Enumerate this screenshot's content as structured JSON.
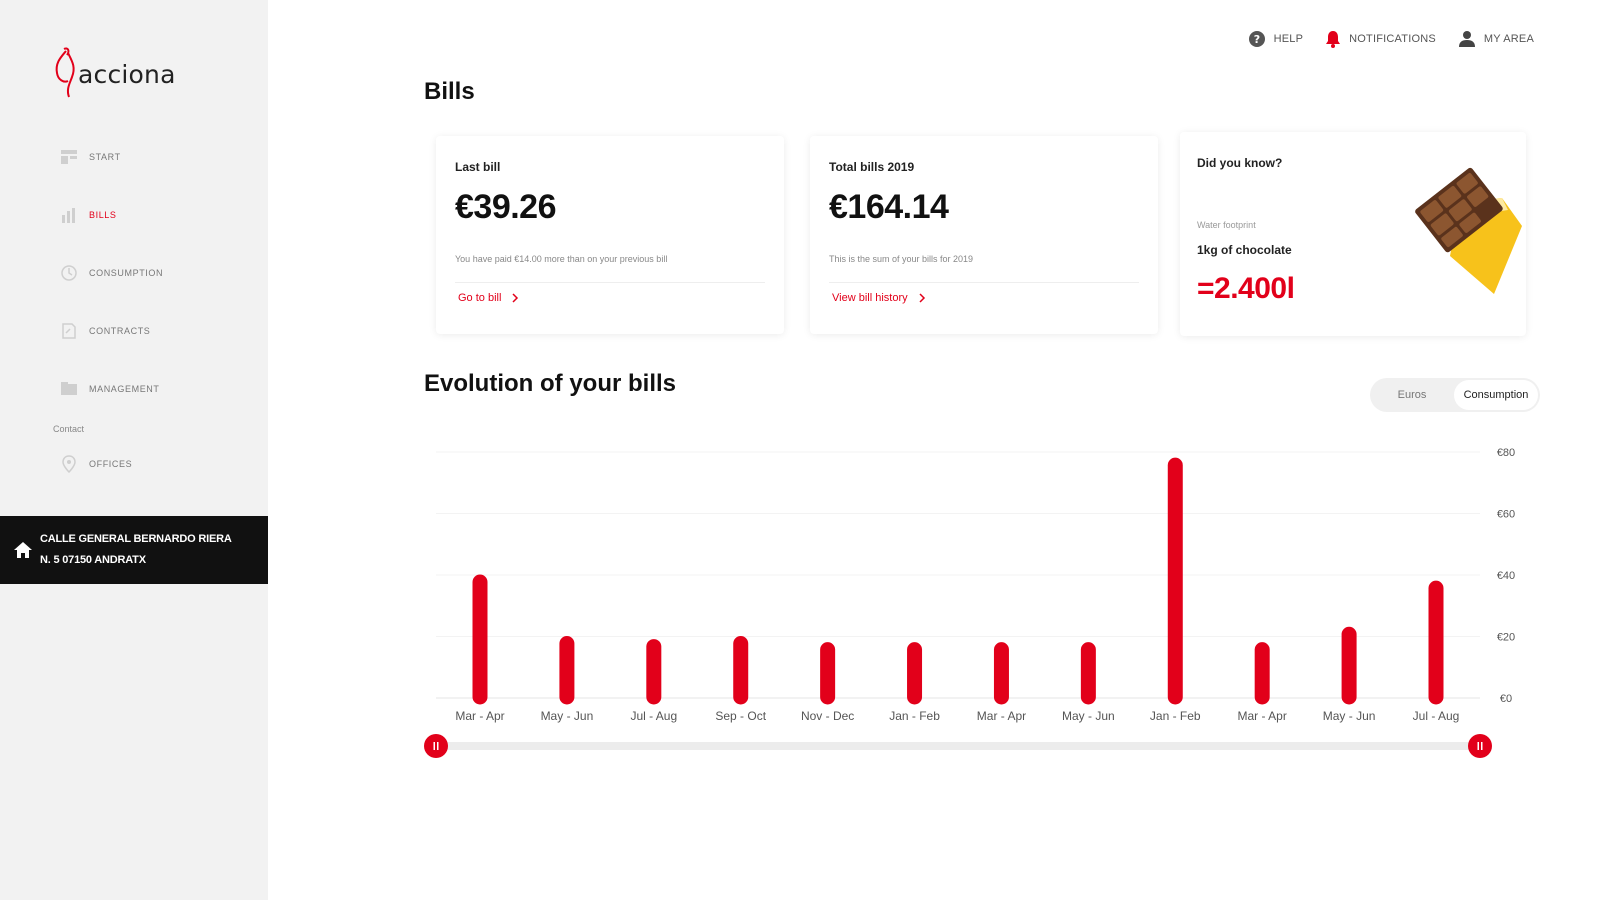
{
  "brand": {
    "name": "acciona"
  },
  "sidebar": {
    "items": [
      {
        "label": "START",
        "icon": "start-icon",
        "active": false
      },
      {
        "label": "BILLS",
        "icon": "bills-icon",
        "active": true
      },
      {
        "label": "CONSUMPTION",
        "icon": "consumption-icon",
        "active": false
      },
      {
        "label": "CONTRACTS",
        "icon": "contracts-icon",
        "active": false
      },
      {
        "label": "MANAGEMENT",
        "icon": "management-icon",
        "active": false
      }
    ],
    "section_label": "Contact",
    "contact_items": [
      {
        "label": "OFFICES",
        "icon": "location-pin-icon"
      }
    ],
    "address": {
      "line1": "CALLE GENERAL BERNARDO RIERA",
      "line2": "N. 5 07150 ANDRATX"
    }
  },
  "topbar": {
    "help": "HELP",
    "notifications": "NOTIFICATIONS",
    "my_area": "MY AREA"
  },
  "page": {
    "title": "Bills"
  },
  "cards": {
    "last_bill": {
      "label": "Last bill",
      "value": "€39.26",
      "note": "You have paid €14.00 more than on your previous bill",
      "link": "Go to bill"
    },
    "total_bills": {
      "label": "Total bills 2019",
      "value": "€164.14",
      "note": "This is the sum of your bills for 2019",
      "link": "View bill history"
    },
    "did_you_know": {
      "title": "Did you know?",
      "subtitle": "Water footprint",
      "item": "1kg of chocolate",
      "value": "=2.400l"
    }
  },
  "evolution": {
    "title": "Evolution of your bills",
    "toggle": {
      "options": [
        "Euros",
        "Consumption"
      ],
      "selected": "Consumption"
    }
  },
  "colors": {
    "accent": "#e2001a",
    "sidebar_bg": "#f2f2f2",
    "address_bg": "#111111"
  },
  "chart_data": {
    "type": "bar",
    "categories": [
      "Mar - Apr",
      "May - Jun",
      "Jul - Aug",
      "Sep - Oct",
      "Nov - Dec",
      "Jan - Feb",
      "Mar - Apr",
      "May - Jun",
      "Jan - Feb",
      "Mar - Apr",
      "May - Jun",
      "Jul - Aug"
    ],
    "values": [
      40,
      20,
      19,
      20,
      18,
      18,
      18,
      18,
      78,
      18,
      23,
      38
    ],
    "ylim": [
      0,
      80
    ],
    "yticks": [
      0,
      20,
      40,
      60,
      80
    ],
    "ytick_labels": [
      "€0",
      "€20",
      "€40",
      "€60",
      "€80"
    ],
    "grid": true,
    "range_slider": {
      "start": 0,
      "end": 1
    }
  }
}
